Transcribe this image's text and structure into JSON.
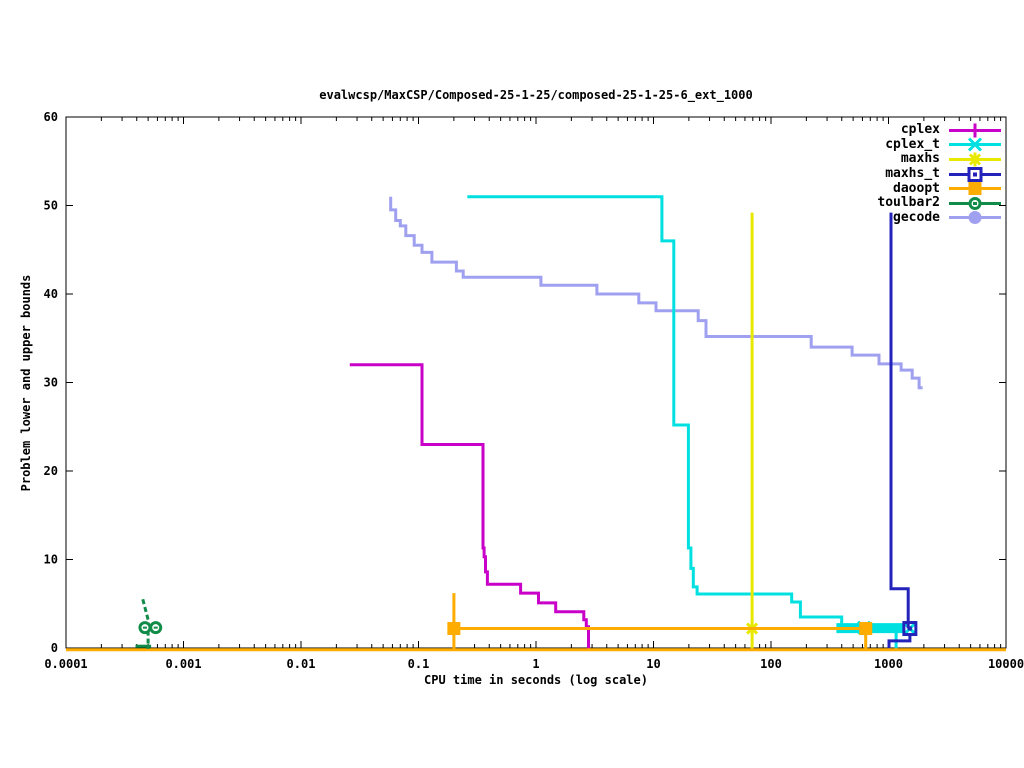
{
  "chart_data": {
    "type": "line",
    "title": "evalwcsp/MaxCSP/Composed-25-1-25/composed-25-1-25-6_ext_1000",
    "xlabel": "CPU time in seconds (log scale)",
    "ylabel": "Problem lower and upper bounds",
    "x_scale": "log",
    "xlim": [
      0.0001,
      10000
    ],
    "ylim": [
      0,
      60
    ],
    "grid": false,
    "legend_position": "top-right-inside",
    "x_ticks": [
      "0.0001",
      "0.001",
      "0.01",
      "0.1",
      "1",
      "10",
      "100",
      "1000",
      "10000"
    ],
    "y_ticks": [
      "0",
      "10",
      "20",
      "30",
      "40",
      "50",
      "60"
    ],
    "series": [
      {
        "name": "cplex",
        "color": "#c800c8",
        "marker": "plus",
        "segments": [
          {
            "pts": [
              [
                0.026,
                32
              ],
              [
                0.107,
                32
              ],
              [
                0.107,
                23
              ],
              [
                0.354,
                23
              ],
              [
                0.354,
                11.3
              ],
              [
                0.362,
                11.3
              ],
              [
                0.362,
                10.3
              ],
              [
                0.372,
                10.3
              ],
              [
                0.372,
                8.6
              ],
              [
                0.386,
                8.6
              ],
              [
                0.386,
                7.2
              ],
              [
                0.74,
                7.2
              ],
              [
                0.74,
                6.2
              ],
              [
                1.05,
                6.2
              ],
              [
                1.05,
                5.1
              ],
              [
                1.47,
                5.1
              ],
              [
                1.47,
                4.1
              ],
              [
                2.55,
                4.1
              ],
              [
                2.55,
                3.2
              ],
              [
                2.68,
                3.2
              ],
              [
                2.68,
                2.4
              ],
              [
                2.8,
                2.4
              ],
              [
                2.8,
                -0.1
              ]
            ]
          }
        ],
        "markers_at": []
      },
      {
        "name": "cplex_t",
        "color": "#00e0e0",
        "marker": "cross",
        "segments": [
          {
            "pts": [
              [
                0.26,
                51
              ],
              [
                11.8,
                51
              ],
              [
                11.8,
                46
              ],
              [
                14.9,
                46
              ],
              [
                14.9,
                25.2
              ],
              [
                19.8,
                25.2
              ],
              [
                19.8,
                11.3
              ],
              [
                20.8,
                11.3
              ],
              [
                20.8,
                9
              ],
              [
                21.8,
                9
              ],
              [
                21.8,
                6.9
              ],
              [
                23.5,
                6.9
              ],
              [
                23.5,
                6.1
              ],
              [
                150,
                6.1
              ],
              [
                150,
                5.2
              ],
              [
                178,
                5.2
              ],
              [
                178,
                3.5
              ],
              [
                400,
                3.5
              ],
              [
                400,
                2.3
              ]
            ]
          },
          {
            "pts": [
              [
                360,
                2.25
              ],
              [
                1380,
                2.25
              ]
            ],
            "w": 10
          },
          {
            "pts": [
              [
                1160,
                2.3
              ],
              [
                1160,
                -0.1
              ]
            ]
          }
        ],
        "markers_at": [
          [
            620,
            2.3
          ],
          [
            1520,
            2.2
          ]
        ]
      },
      {
        "name": "maxhs",
        "color": "#e8e800",
        "marker": "star",
        "segments": [
          {
            "pts": [
              [
                69,
                -0.1
              ],
              [
                69,
                49.2
              ]
            ]
          }
        ],
        "markers_at": [
          [
            69,
            2.2
          ]
        ]
      },
      {
        "name": "maxhs_t",
        "color": "#2323bb",
        "marker": "square-open",
        "segments": [
          {
            "pts": [
              [
                1050,
                49.2
              ],
              [
                1050,
                6.7
              ],
              [
                1470,
                6.7
              ],
              [
                1470,
                2.2
              ]
            ]
          },
          {
            "pts": [
              [
                1520,
                1.6
              ],
              [
                1520,
                0.8
              ],
              [
                1010,
                0.8
              ],
              [
                1010,
                -0.1
              ]
            ]
          }
        ],
        "markers_at": [
          [
            1520,
            2.2
          ]
        ]
      },
      {
        "name": "daoopt",
        "color": "#ffac00",
        "marker": "square-filled",
        "segments": [
          {
            "pts": [
              [
                0.0001,
                -0.2
              ],
              [
                10000,
                -0.2
              ]
            ]
          },
          {
            "pts": [
              [
                0.2,
                -0.2
              ],
              [
                0.2,
                6.2
              ]
            ]
          },
          {
            "pts": [
              [
                0.2,
                2.2
              ],
              [
                640,
                2.2
              ],
              [
                640,
                -0.2
              ]
            ]
          }
        ],
        "markers_at": [
          [
            0.2,
            2.2
          ],
          [
            640,
            2.2
          ]
        ]
      },
      {
        "name": "toulbar2",
        "color": "#108c48",
        "marker": "circle-open",
        "segments": [
          {
            "pts": [
              [
                0.00045,
                5.5
              ],
              [
                0.0005,
                3.2
              ],
              [
                0.0005,
                -0.1
              ]
            ],
            "dash": "5,3"
          },
          {
            "pts": [
              [
                0.00039,
                0.2
              ],
              [
                0.00053,
                0.2
              ]
            ]
          }
        ],
        "markers_at": [
          [
            0.00047,
            2.3
          ],
          [
            0.00058,
            2.3
          ]
        ]
      },
      {
        "name": "gecode",
        "color": "#a0a0f0",
        "marker": "circle-filled",
        "segments": [
          {
            "pts": [
              [
                0.058,
                51
              ],
              [
                0.058,
                49.5
              ],
              [
                0.064,
                49.5
              ],
              [
                0.064,
                48.3
              ],
              [
                0.07,
                48.3
              ],
              [
                0.07,
                47.7
              ],
              [
                0.078,
                47.7
              ],
              [
                0.078,
                46.6
              ],
              [
                0.092,
                46.6
              ],
              [
                0.092,
                45.5
              ],
              [
                0.107,
                45.5
              ],
              [
                0.107,
                44.7
              ],
              [
                0.13,
                44.7
              ],
              [
                0.13,
                43.6
              ],
              [
                0.21,
                43.6
              ],
              [
                0.21,
                42.6
              ],
              [
                0.24,
                42.6
              ],
              [
                0.24,
                41.9
              ],
              [
                1.1,
                41.9
              ],
              [
                1.1,
                41
              ],
              [
                3.3,
                41
              ],
              [
                3.3,
                40
              ],
              [
                7.5,
                40
              ],
              [
                7.5,
                39
              ],
              [
                10.5,
                39
              ],
              [
                10.5,
                38.1
              ],
              [
                24,
                38.1
              ],
              [
                24,
                37
              ],
              [
                28,
                37
              ],
              [
                28,
                35.2
              ],
              [
                220,
                35.2
              ],
              [
                220,
                34
              ],
              [
                490,
                34
              ],
              [
                490,
                33.1
              ],
              [
                830,
                33.1
              ],
              [
                830,
                32.1
              ],
              [
                1280,
                32.1
              ],
              [
                1280,
                31.4
              ],
              [
                1590,
                31.4
              ],
              [
                1590,
                30.5
              ],
              [
                1820,
                30.5
              ],
              [
                1820,
                29.4
              ],
              [
                1950,
                29.4
              ]
            ]
          }
        ],
        "markers_at": []
      }
    ]
  }
}
